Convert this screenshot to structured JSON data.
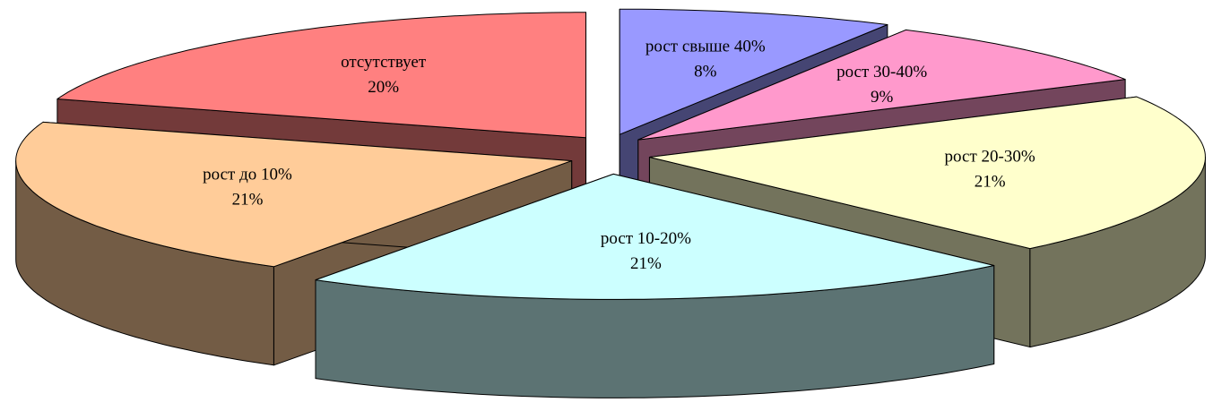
{
  "chart_data": {
    "type": "pie3d",
    "categories": [
      "рост свыше 40%",
      "рост 30-40%",
      "рост 20-30%",
      "рост 10-20%",
      "рост до 10%",
      "отсутствует"
    ],
    "values": [
      8,
      9,
      21,
      21,
      21,
      20
    ],
    "value_labels": [
      "8%",
      "9%",
      "21%",
      "21%",
      "21%",
      "20%"
    ],
    "colors": [
      "#9999ff",
      "#ff99cc",
      "#ffffcc",
      "#ccffff",
      "#ffcc99",
      "#ff8080"
    ]
  }
}
